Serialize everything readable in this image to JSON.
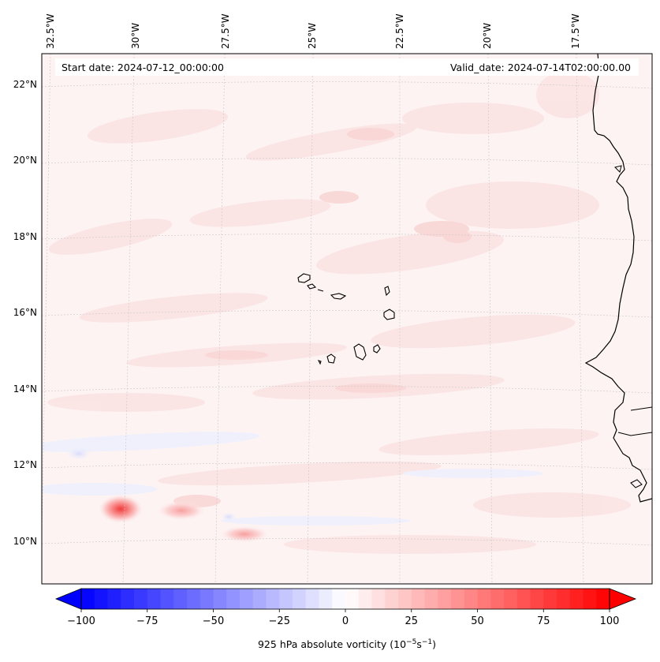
{
  "header": {
    "start_date": "Start date: 2024-07-12_00:00:00",
    "valid_date": "Valid_date: 2024-07-14T02:00:00.00"
  },
  "axes": {
    "lon_labels": [
      "32.5°W",
      "30°W",
      "27.5°W",
      "25°W",
      "22.5°W",
      "20°W",
      "17.5°W"
    ],
    "lat_labels": [
      "22°N",
      "20°N",
      "18°N",
      "16°N",
      "14°N",
      "12°N",
      "10°N"
    ]
  },
  "colorbar": {
    "tick_labels": [
      "−100",
      "−75",
      "−50",
      "−25",
      "0",
      "25",
      "50",
      "75",
      "100"
    ],
    "title": "925 hPa absolute vorticity (10",
    "title_exp1": "−5",
    "title_mid": "s",
    "title_exp2": "−1",
    "title_end": ")",
    "range": [
      -100,
      100
    ],
    "levels": 40,
    "colors": {
      "negative": "#0000ff",
      "zero": "#ffffff",
      "positive": "#ff0000"
    }
  },
  "map": {
    "field": "925 hPa absolute vorticity",
    "coastline_color": "#000000",
    "gridline_style": "dotted light gray"
  }
}
